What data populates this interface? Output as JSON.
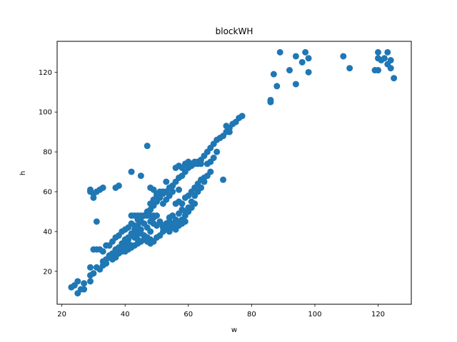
{
  "chart_data": {
    "type": "scatter",
    "title": "blockWH",
    "xlabel": "w",
    "ylabel": "h",
    "xlim": [
      18.5,
      130.5
    ],
    "ylim": [
      3.5,
      135.5
    ],
    "xticks": [
      20,
      40,
      60,
      80,
      100,
      120
    ],
    "yticks": [
      20,
      40,
      60,
      80,
      100,
      120
    ],
    "grid": false,
    "marker_color": "#1f77b4",
    "series": [
      {
        "points": [
          [
            23,
            12
          ],
          [
            24,
            13
          ],
          [
            25,
            15
          ],
          [
            25,
            9
          ],
          [
            26,
            11
          ],
          [
            27,
            14
          ],
          [
            27,
            11
          ],
          [
            29,
            15
          ],
          [
            29,
            18
          ],
          [
            30,
            19
          ],
          [
            29,
            22
          ],
          [
            31,
            22
          ],
          [
            32,
            21
          ],
          [
            33,
            23
          ],
          [
            33,
            25
          ],
          [
            34,
            24
          ],
          [
            35,
            27
          ],
          [
            36,
            26
          ],
          [
            36,
            28
          ],
          [
            37,
            30
          ],
          [
            37,
            27
          ],
          [
            38,
            29
          ],
          [
            38,
            31
          ],
          [
            39,
            30
          ],
          [
            39,
            33
          ],
          [
            40,
            32
          ],
          [
            40,
            35
          ],
          [
            41,
            34
          ],
          [
            41,
            36
          ],
          [
            42,
            33
          ],
          [
            42,
            38
          ],
          [
            43,
            37
          ],
          [
            43,
            40
          ],
          [
            44,
            39
          ],
          [
            44,
            36
          ],
          [
            45,
            41
          ],
          [
            45,
            35
          ],
          [
            46,
            44
          ],
          [
            46,
            38
          ],
          [
            47,
            42
          ],
          [
            47,
            37
          ],
          [
            48,
            40
          ],
          [
            48,
            45
          ],
          [
            49,
            44
          ],
          [
            49,
            47
          ],
          [
            50,
            43
          ],
          [
            51,
            45
          ],
          [
            52,
            42
          ],
          [
            53,
            44
          ],
          [
            54,
            47
          ],
          [
            54,
            45
          ],
          [
            55,
            48
          ],
          [
            56,
            46
          ],
          [
            57,
            49
          ],
          [
            58,
            51
          ],
          [
            59,
            50
          ],
          [
            60,
            52
          ],
          [
            61,
            55
          ],
          [
            62,
            58
          ],
          [
            63,
            60
          ],
          [
            64,
            62
          ],
          [
            65,
            65
          ],
          [
            66,
            68
          ],
          [
            67,
            70
          ],
          [
            30,
            31
          ],
          [
            31,
            31
          ],
          [
            32,
            31
          ],
          [
            33,
            30
          ],
          [
            34,
            33
          ],
          [
            35,
            33
          ],
          [
            36,
            35
          ],
          [
            37,
            37
          ],
          [
            38,
            38
          ],
          [
            39,
            40
          ],
          [
            40,
            41
          ],
          [
            41,
            42
          ],
          [
            42,
            44
          ],
          [
            43,
            43
          ],
          [
            44,
            46
          ],
          [
            45,
            47
          ],
          [
            46,
            48
          ],
          [
            47,
            50
          ],
          [
            48,
            51
          ],
          [
            49,
            53
          ],
          [
            50,
            55
          ],
          [
            51,
            57
          ],
          [
            52,
            59
          ],
          [
            53,
            60
          ],
          [
            54,
            62
          ],
          [
            55,
            63
          ],
          [
            56,
            65
          ],
          [
            57,
            67
          ],
          [
            58,
            68
          ],
          [
            59,
            70
          ],
          [
            60,
            72
          ],
          [
            61,
            74
          ],
          [
            62,
            75
          ],
          [
            63,
            75
          ],
          [
            64,
            76
          ],
          [
            65,
            78
          ],
          [
            66,
            80
          ],
          [
            67,
            82
          ],
          [
            68,
            84
          ],
          [
            69,
            86
          ],
          [
            70,
            87
          ],
          [
            71,
            88
          ],
          [
            72,
            90
          ],
          [
            73,
            92
          ],
          [
            74,
            94
          ],
          [
            75,
            95
          ],
          [
            76,
            97
          ],
          [
            77,
            98
          ],
          [
            29,
            60
          ],
          [
            29,
            61
          ],
          [
            30,
            59
          ],
          [
            30,
            57
          ],
          [
            31,
            60
          ],
          [
            32,
            61
          ],
          [
            33,
            62
          ],
          [
            37,
            62
          ],
          [
            38,
            63
          ],
          [
            42,
            48
          ],
          [
            42,
            70
          ],
          [
            45,
            68
          ],
          [
            47,
            83
          ],
          [
            31,
            45
          ],
          [
            43,
            48
          ],
          [
            44,
            48
          ],
          [
            45,
            48
          ],
          [
            46,
            48
          ],
          [
            47,
            48
          ],
          [
            48,
            48
          ],
          [
            49,
            48
          ],
          [
            50,
            48
          ],
          [
            48,
            54
          ],
          [
            49,
            56
          ],
          [
            50,
            58
          ],
          [
            51,
            60
          ],
          [
            52,
            54
          ],
          [
            53,
            56
          ],
          [
            54,
            58
          ],
          [
            55,
            60
          ],
          [
            56,
            54
          ],
          [
            57,
            55
          ],
          [
            58,
            54
          ],
          [
            59,
            57
          ],
          [
            60,
            58
          ],
          [
            61,
            60
          ],
          [
            62,
            62
          ],
          [
            63,
            64
          ],
          [
            64,
            66
          ],
          [
            65,
            67
          ],
          [
            86,
            105
          ],
          [
            86,
            106
          ],
          [
            87,
            119
          ],
          [
            88,
            113
          ],
          [
            89,
            130
          ],
          [
            92,
            121
          ],
          [
            94,
            128
          ],
          [
            94,
            114
          ],
          [
            96,
            125
          ],
          [
            97,
            130
          ],
          [
            98,
            127
          ],
          [
            98,
            120
          ],
          [
            109,
            128
          ],
          [
            111,
            122
          ],
          [
            119,
            121
          ],
          [
            120,
            121
          ],
          [
            120,
            130
          ],
          [
            120,
            127
          ],
          [
            121,
            126
          ],
          [
            122,
            127
          ],
          [
            123,
            124
          ],
          [
            123,
            130
          ],
          [
            124,
            126
          ],
          [
            124,
            122
          ],
          [
            125,
            117
          ],
          [
            48,
            62
          ],
          [
            49,
            61
          ],
          [
            50,
            59
          ],
          [
            52,
            60
          ],
          [
            53,
            65
          ],
          [
            55,
            63
          ],
          [
            57,
            61
          ],
          [
            64,
            62
          ],
          [
            71,
            66
          ],
          [
            72,
            93
          ],
          [
            73,
            90
          ],
          [
            56,
            72
          ],
          [
            57,
            73
          ],
          [
            58,
            72
          ],
          [
            59,
            74
          ],
          [
            60,
            75
          ],
          [
            61,
            73
          ],
          [
            62,
            74
          ],
          [
            63,
            74
          ],
          [
            64,
            74
          ],
          [
            66,
            74
          ],
          [
            67,
            75
          ],
          [
            68,
            77
          ],
          [
            69,
            80
          ],
          [
            44,
            40
          ],
          [
            45,
            39
          ],
          [
            46,
            38
          ],
          [
            47,
            37
          ],
          [
            48,
            36
          ],
          [
            52,
            40
          ],
          [
            53,
            41
          ],
          [
            54,
            40
          ],
          [
            55,
            42
          ],
          [
            56,
            41
          ],
          [
            57,
            43
          ],
          [
            58,
            44
          ],
          [
            59,
            45
          ],
          [
            40,
            30
          ],
          [
            41,
            31
          ],
          [
            42,
            32
          ],
          [
            43,
            33
          ],
          [
            44,
            34
          ],
          [
            45,
            35
          ],
          [
            46,
            36
          ],
          [
            47,
            35
          ],
          [
            48,
            34
          ],
          [
            49,
            35
          ],
          [
            50,
            37
          ],
          [
            51,
            38
          ],
          [
            34,
            26
          ],
          [
            35,
            28
          ],
          [
            36,
            29
          ],
          [
            37,
            31
          ],
          [
            38,
            32
          ],
          [
            39,
            34
          ],
          [
            40,
            36
          ],
          [
            41,
            37
          ],
          [
            42,
            39
          ],
          [
            43,
            41
          ],
          [
            44,
            43
          ],
          [
            45,
            45
          ],
          [
            52,
            43
          ],
          [
            53,
            42
          ],
          [
            54,
            43
          ],
          [
            55,
            44
          ],
          [
            56,
            44
          ],
          [
            57,
            45
          ],
          [
            58,
            46
          ],
          [
            59,
            48
          ],
          [
            60,
            50
          ],
          [
            61,
            52
          ],
          [
            62,
            54
          ]
        ]
      }
    ]
  }
}
